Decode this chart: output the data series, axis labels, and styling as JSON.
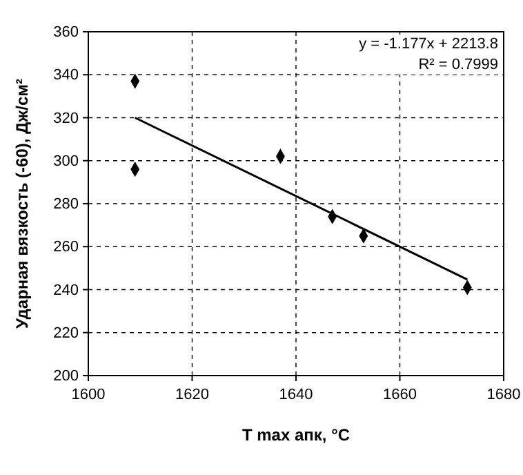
{
  "chart_data": {
    "type": "scatter",
    "xlabel": "T max апк, °C",
    "ylabel": "Ударная вязкость (-60), Дж/см²",
    "xlim": [
      1600,
      1680
    ],
    "xticks": [
      1600,
      1620,
      1640,
      1660,
      1680
    ],
    "ylim": [
      200,
      360
    ],
    "yticks": [
      200,
      220,
      240,
      260,
      280,
      300,
      320,
      340,
      360
    ],
    "grid": true,
    "series": [
      {
        "color": "#000000",
        "marker": "diamond",
        "x": [
          1609,
          1609,
          1637,
          1647,
          1653,
          1673
        ],
        "values": [
          337,
          296,
          302,
          274,
          265,
          241
        ]
      },
      {
        "type": "line",
        "color": "#000000",
        "marker": "none",
        "x": [
          1609,
          1673
        ],
        "values": [
          320.0,
          244.7
        ]
      }
    ],
    "annotations": [
      "y = -1.177x + 2213.8",
      "R² = 0.7999"
    ]
  }
}
